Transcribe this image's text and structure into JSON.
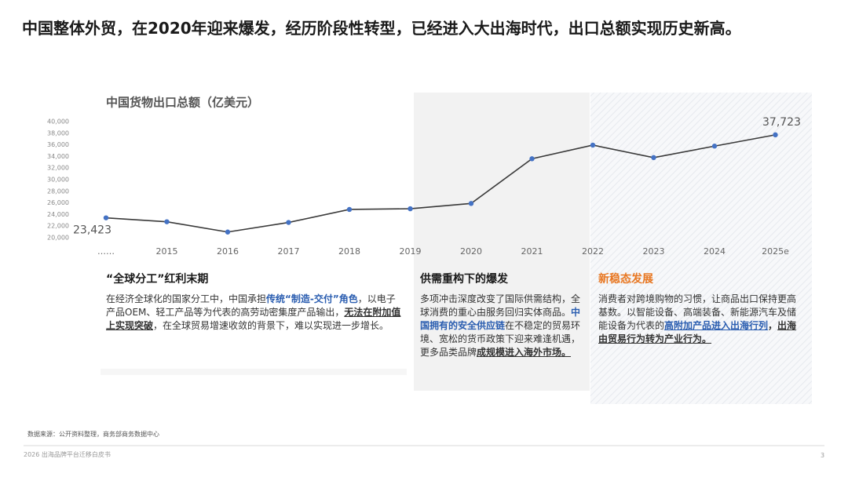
{
  "header": {
    "title": "中国整体外贸，在2020年迎来爆发，经历阶段性转型，已经进入大出海时代，出口总额实现历史新高。"
  },
  "chart_data": {
    "type": "line",
    "title": "中国货物出口总额（亿美元）",
    "categories": [
      "……",
      "2015",
      "2016",
      "2017",
      "2018",
      "2019",
      "2020",
      "2021",
      "2022",
      "2023",
      "2024",
      "2025e"
    ],
    "values": [
      23423,
      22750,
      20980,
      22630,
      24870,
      24990,
      25900,
      33600,
      35950,
      33800,
      35780,
      37723
    ],
    "value_labels": [
      "23,423",
      null,
      null,
      null,
      null,
      null,
      null,
      null,
      null,
      null,
      null,
      "37,723"
    ],
    "color": "#3a3a3a",
    "marker_color": "#4472c4",
    "ylim": [
      20000,
      40000
    ],
    "yticks": [
      {
        "value": 20000,
        "label": "20,000"
      },
      {
        "value": 22000,
        "label": "22,000"
      },
      {
        "value": 24000,
        "label": "24,000"
      },
      {
        "value": 26000,
        "label": "26,000"
      },
      {
        "value": 28000,
        "label": "28,000"
      },
      {
        "value": 30000,
        "label": "30,000"
      },
      {
        "value": 32000,
        "label": "32,000"
      },
      {
        "value": 34000,
        "label": "34,000"
      },
      {
        "value": 36000,
        "label": "36,000"
      },
      {
        "value": 38000,
        "label": "38,000"
      },
      {
        "value": 40000,
        "label": "40,000"
      }
    ],
    "grid": false
  },
  "columns": [
    {
      "title": "“全球分工”红利末期",
      "body": [
        "在经济全球化的国家分工中，中国承担",
        "传统“制造-交付”角色",
        "，以电子产品OEM、轻工产品等为代表的高劳动密集度产品输出，",
        "无法在附加值上实现突破",
        "，在全球贸易增速收敛的背景下，难以实现进一步增长。"
      ]
    },
    {
      "title": "供需重构下的爆发",
      "body": [
        "多项冲击深度改变了国际供需结构，全球消费的重心由服务回归实体商品。",
        "中国拥有的安全供应链",
        "在不稳定的贸易环境、宽松的货币政策下迎来难逢机遇，更多品类品牌",
        "成规模进入海外市场。"
      ]
    },
    {
      "title": "新稳态发展",
      "body": [
        "消费者对跨境购物的习惯，让商品出口保持更高基数。以智能设备、高端装备、新能源汽车及储能设备为代表的",
        "高附加产品进入出海行列",
        "，",
        "出海由贸易行为转为产业行为。"
      ]
    }
  ],
  "footer": {
    "source": "数据来源：公开资料整理，商务部商务数据中心",
    "doc": "2026 出海品牌平台迁移白皮书",
    "page": "3"
  }
}
